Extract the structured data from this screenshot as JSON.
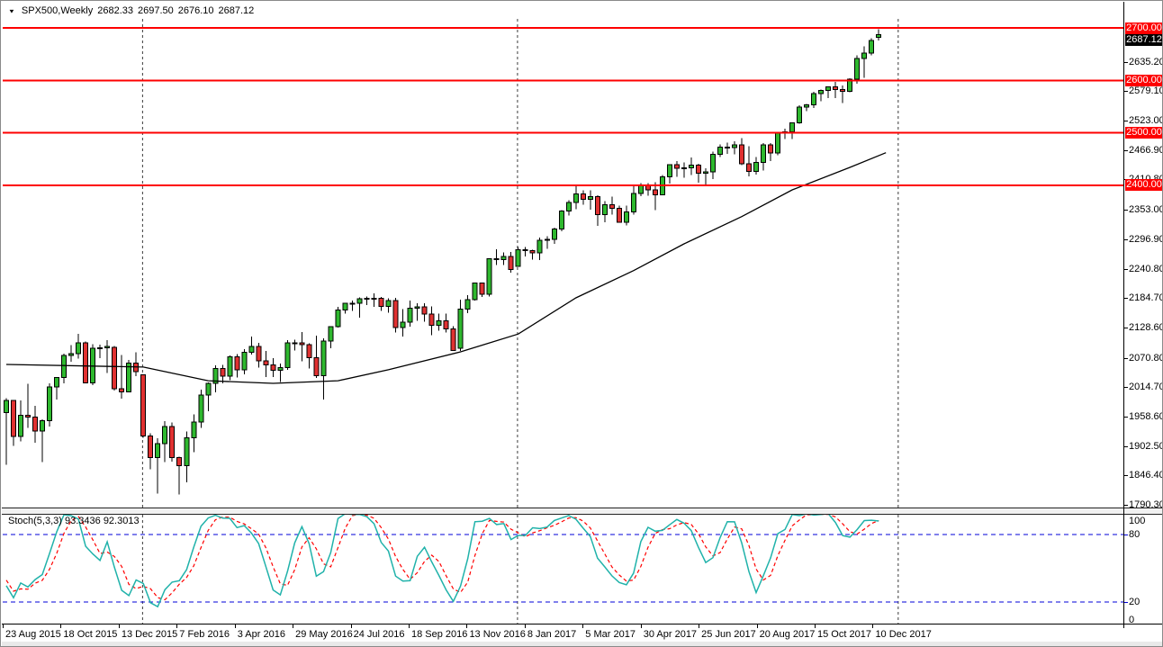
{
  "ui": {
    "title": {
      "symbol": "SPX500,Weekly",
      "open": "2682.33",
      "high": "2697.50",
      "low": "2676.10",
      "close": "2687.12"
    },
    "stoch": {
      "label": "Stoch(5,3,3)",
      "main": "93.3436",
      "signal": "92.3013"
    },
    "icons": {
      "collapse_triangle": "▼"
    }
  },
  "colors": {
    "bull_candle": "#2eb82e",
    "bear_candle": "#e03131",
    "candle_outline": "#000000",
    "ma_line": "#000000",
    "red_level_line": "#fe0000",
    "price_badge_red": "#fe0000",
    "price_badge_black": "#000000",
    "stoch_main": "#20b2aa",
    "stoch_signal": "#ff0000",
    "stoch_level": "#0000d8",
    "year_separator": "#3c3c3c"
  },
  "chart_data": [
    {
      "type": "candlestick",
      "title": "SPX500,Weekly",
      "interval": "weekly",
      "x_tick_labels": [
        "23 Aug 2015",
        "18 Oct 2015",
        "13 Dec 2015",
        "7 Feb 2016",
        "3 Apr 2016",
        "29 May 2016",
        "24 Jul 2016",
        "18 Sep 2016",
        "13 Nov 2016",
        "8 Jan 2017",
        "5 Mar 2017",
        "30 Apr 2017",
        "25 Jun 2017",
        "20 Aug 2017",
        "15 Oct 2017",
        "10 Dec 2017"
      ],
      "bars_per_tick": 8,
      "y_axis_tick_labels": [
        "2635.20",
        "2579.10",
        "2523.00",
        "2466.90",
        "2410.80",
        "2353.00",
        "2296.90",
        "2240.80",
        "2184.70",
        "2128.60",
        "2070.80",
        "2014.70",
        "1958.60",
        "1902.50",
        "1846.40",
        "1790.30"
      ],
      "ylim": [
        1768,
        2721
      ],
      "horizontal_red_lines": [
        2700,
        2600,
        2500,
        2400
      ],
      "horizontal_red_line_labels": [
        "2700.00",
        "2600.00",
        "2500.00",
        "2400.00"
      ],
      "current_price": 2687.12,
      "current_price_label": "2687.12",
      "year_separator_bars": [
        18.9,
        70.9,
        123.7
      ],
      "warmup_bars": [
        [
          2126,
          2133,
          2044,
          2080
        ],
        [
          2080,
          2111,
          2063,
          2104
        ],
        [
          2104,
          2114,
          2067,
          2078
        ],
        [
          2078,
          2105,
          2052,
          2092
        ],
        [
          2092,
          2102,
          1971,
          1971
        ]
      ],
      "bars": [
        [
          1966,
          1994,
          1867,
          1989
        ],
        [
          1989,
          1990,
          1903,
          1921
        ],
        [
          1921,
          1989,
          1911,
          1961
        ],
        [
          1961,
          2021,
          1937,
          1958
        ],
        [
          1958,
          1979,
          1909,
          1931
        ],
        [
          1931,
          1953,
          1872,
          1951
        ],
        [
          1951,
          2022,
          1940,
          2015
        ],
        [
          2015,
          2034,
          1991,
          2033
        ],
        [
          2033,
          2079,
          2022,
          2075
        ],
        [
          2075,
          2095,
          2063,
          2079
        ],
        [
          2079,
          2116,
          2069,
          2099
        ],
        [
          2099,
          2102,
          2022,
          2023
        ],
        [
          2023,
          2097,
          2019,
          2089
        ],
        [
          2089,
          2096,
          2070,
          2090
        ],
        [
          2090,
          2104,
          2042,
          2092
        ],
        [
          2091,
          2093,
          2008,
          2012
        ],
        [
          2012,
          2076,
          1993,
          2006
        ],
        [
          2006,
          2067,
          2005,
          2061
        ],
        [
          2061,
          2081,
          2036,
          2044
        ],
        [
          2038,
          2038,
          1918,
          1922
        ],
        [
          1922,
          1927,
          1858,
          1880
        ],
        [
          1880,
          1917,
          1812,
          1907
        ],
        [
          1907,
          1950,
          1872,
          1940
        ],
        [
          1940,
          1947,
          1873,
          1880
        ],
        [
          1880,
          1882,
          1810,
          1865
        ],
        [
          1865,
          1930,
          1833,
          1918
        ],
        [
          1918,
          1963,
          1891,
          1948
        ],
        [
          1948,
          2010,
          1937,
          2000
        ],
        [
          2000,
          2024,
          1969,
          2022
        ],
        [
          2022,
          2056,
          2005,
          2050
        ],
        [
          2050,
          2057,
          2022,
          2036
        ],
        [
          2036,
          2075,
          2028,
          2073
        ],
        [
          2073,
          2078,
          2033,
          2048
        ],
        [
          2048,
          2087,
          2039,
          2081
        ],
        [
          2081,
          2111,
          2077,
          2092
        ],
        [
          2092,
          2099,
          2052,
          2065
        ],
        [
          2065,
          2084,
          2034,
          2057
        ],
        [
          2057,
          2070,
          2034,
          2047
        ],
        [
          2047,
          2060,
          2025,
          2052
        ],
        [
          2052,
          2104,
          2048,
          2099
        ],
        [
          2099,
          2105,
          2085,
          2099
        ],
        [
          2099,
          2120,
          2064,
          2096
        ],
        [
          2096,
          2098,
          2050,
          2071
        ],
        [
          2071,
          2113,
          2032,
          2037
        ],
        [
          2037,
          2108,
          1991,
          2103
        ],
        [
          2103,
          2131,
          2089,
          2130
        ],
        [
          2130,
          2168,
          2128,
          2162
        ],
        [
          2162,
          2176,
          2155,
          2175
        ],
        [
          2175,
          2180,
          2160,
          2175
        ],
        [
          2175,
          2186,
          2147,
          2183
        ],
        [
          2183,
          2188,
          2171,
          2184
        ],
        [
          2184,
          2194,
          2168,
          2184
        ],
        [
          2184,
          2187,
          2160,
          2169
        ],
        [
          2169,
          2184,
          2157,
          2180
        ],
        [
          2180,
          2185,
          2119,
          2128
        ],
        [
          2128,
          2164,
          2111,
          2139
        ],
        [
          2139,
          2180,
          2130,
          2165
        ],
        [
          2165,
          2175,
          2141,
          2168
        ],
        [
          2168,
          2175,
          2140,
          2154
        ],
        [
          2154,
          2169,
          2114,
          2133
        ],
        [
          2133,
          2155,
          2122,
          2141
        ],
        [
          2141,
          2155,
          2119,
          2126
        ],
        [
          2126,
          2131,
          2084,
          2085
        ],
        [
          2089,
          2182,
          2084,
          2164
        ],
        [
          2164,
          2190,
          2156,
          2182
        ],
        [
          2182,
          2213,
          2180,
          2213
        ],
        [
          2213,
          2214,
          2187,
          2192
        ],
        [
          2192,
          2260,
          2188,
          2260
        ],
        [
          2260,
          2278,
          2248,
          2258
        ],
        [
          2258,
          2272,
          2248,
          2264
        ],
        [
          2264,
          2273,
          2233,
          2239
        ],
        [
          2245,
          2282,
          2244,
          2277
        ],
        [
          2277,
          2282,
          2264,
          2275
        ],
        [
          2275,
          2277,
          2258,
          2271
        ],
        [
          2271,
          2300,
          2257,
          2295
        ],
        [
          2295,
          2303,
          2279,
          2297
        ],
        [
          2297,
          2319,
          2288,
          2316
        ],
        [
          2316,
          2352,
          2312,
          2351
        ],
        [
          2351,
          2371,
          2342,
          2367
        ],
        [
          2367,
          2401,
          2354,
          2383
        ],
        [
          2383,
          2390,
          2363,
          2373
        ],
        [
          2373,
          2390,
          2353,
          2378
        ],
        [
          2378,
          2381,
          2322,
          2344
        ],
        [
          2344,
          2370,
          2329,
          2363
        ],
        [
          2363,
          2378,
          2344,
          2356
        ],
        [
          2356,
          2361,
          2328,
          2329
        ],
        [
          2329,
          2361,
          2323,
          2349
        ],
        [
          2349,
          2398,
          2344,
          2384
        ],
        [
          2384,
          2404,
          2379,
          2399
        ],
        [
          2399,
          2404,
          2380,
          2391
        ],
        [
          2391,
          2406,
          2352,
          2382
        ],
        [
          2382,
          2419,
          2381,
          2416
        ],
        [
          2416,
          2440,
          2403,
          2439
        ],
        [
          2439,
          2446,
          2416,
          2432
        ],
        [
          2432,
          2443,
          2414,
          2433
        ],
        [
          2433,
          2453,
          2419,
          2438
        ],
        [
          2438,
          2441,
          2405,
          2423
        ],
        [
          2423,
          2432,
          2401,
          2425
        ],
        [
          2425,
          2464,
          2412,
          2459
        ],
        [
          2459,
          2478,
          2454,
          2473
        ],
        [
          2473,
          2481,
          2460,
          2472
        ],
        [
          2472,
          2484,
          2459,
          2477
        ],
        [
          2477,
          2490,
          2438,
          2441
        ],
        [
          2441,
          2474,
          2417,
          2426
        ],
        [
          2426,
          2454,
          2420,
          2443
        ],
        [
          2443,
          2480,
          2428,
          2477
        ],
        [
          2477,
          2480,
          2446,
          2461
        ],
        [
          2461,
          2500,
          2457,
          2500
        ],
        [
          2500,
          2508,
          2488,
          2502
        ],
        [
          2502,
          2519,
          2488,
          2519
        ],
        [
          2519,
          2552,
          2517,
          2549
        ],
        [
          2549,
          2555,
          2541,
          2553
        ],
        [
          2553,
          2578,
          2547,
          2575
        ],
        [
          2575,
          2582,
          2560,
          2581
        ],
        [
          2581,
          2588,
          2566,
          2588
        ],
        [
          2588,
          2597,
          2566,
          2582
        ],
        [
          2582,
          2590,
          2557,
          2579
        ],
        [
          2579,
          2604,
          2577,
          2602
        ],
        [
          2602,
          2648,
          2594,
          2642
        ],
        [
          2642,
          2665,
          2605,
          2652
        ],
        [
          2652,
          2680,
          2648,
          2676
        ],
        [
          2682.33,
          2697.5,
          2676.1,
          2687.12
        ]
      ],
      "ma_points": [
        [
          0,
          2058
        ],
        [
          19,
          2053
        ],
        [
          28,
          2027
        ],
        [
          37,
          2022
        ],
        [
          46,
          2027
        ],
        [
          53,
          2048
        ],
        [
          63,
          2082
        ],
        [
          71,
          2116
        ],
        [
          79,
          2185
        ],
        [
          87,
          2237
        ],
        [
          94,
          2288
        ],
        [
          102,
          2340
        ],
        [
          109,
          2391
        ],
        [
          117,
          2434
        ],
        [
          122,
          2462
        ]
      ]
    },
    {
      "type": "line",
      "name": "Stoch(5,3,3)",
      "main_value": 93.3436,
      "signal_value": 92.3013,
      "levels": [
        80,
        20
      ],
      "y_tick_labels": [
        "100",
        "80",
        "20",
        "0"
      ],
      "range": [
        0,
        100
      ],
      "derived_from": "bars (period 5, smoothing 3, signal 3)"
    }
  ]
}
